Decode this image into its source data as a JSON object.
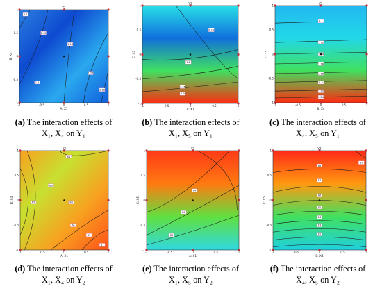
{
  "panels": [
    {
      "tag": "(a)",
      "line1": "The interaction effects of",
      "line2": "X₁, X₄ on Y₁",
      "title": "Y1",
      "xlabel": "A: X1",
      "ylabel": "B: X4",
      "xticks": [
        "-1",
        "-0.5",
        "0",
        "0.5",
        "1"
      ],
      "yticks": [
        "1",
        "0.5",
        "0",
        "-0.5",
        "-1"
      ],
      "contour_labels": [
        "1.1",
        "1.12",
        "1.14",
        "1.16",
        "1.18",
        "1.2"
      ],
      "gradient": [
        "#2a7fe0",
        "#0e4ad0",
        "#2aa8ef",
        "#1060dc"
      ]
    },
    {
      "tag": "(b)",
      "line1": "The interaction effects of",
      "line2": "X₁, X₅ on Y₁",
      "title": "Y1",
      "xlabel": "A: X1",
      "ylabel": "C: X5",
      "xticks": [
        "-1",
        "-0.5",
        "0",
        "0.5",
        "1"
      ],
      "yticks": [
        "1",
        "0.5",
        "0",
        "-0.5",
        "-1"
      ],
      "contour_labels": [
        "1.15",
        "1.2",
        "1.25",
        "1.3"
      ],
      "gradient": [
        "#29e0e8",
        "#1070dc",
        "#40e060",
        "#ff2a10"
      ]
    },
    {
      "tag": "(c)",
      "line1": "The interaction effects of",
      "line2": "X₄, X₅ on Y₁",
      "title": "Y1",
      "xlabel": "B: X4",
      "ylabel": "C: X5",
      "xticks": [
        "-1",
        "-0.5",
        "0",
        "0.5",
        "1"
      ],
      "yticks": [
        "1",
        "0.5",
        "0",
        "-0.5",
        "-1"
      ],
      "contour_labels": [
        "1.1",
        "1.12",
        "1.14",
        "1.16",
        "1.18",
        "1.2",
        "1.22",
        "1.24"
      ],
      "gradient": [
        "#22b8f0",
        "#22d8e8",
        "#40e060",
        "#ff2a10"
      ]
    },
    {
      "tag": "(d)",
      "line1": "The interaction effects of",
      "line2": "X₁, X₄ on Y₂",
      "title": "Y2",
      "xlabel": "A: X1",
      "ylabel": "B: X4",
      "xticks": [
        "-1",
        "-0.5",
        "0",
        "0.5",
        "1"
      ],
      "yticks": [
        "1",
        "0.5",
        "0",
        "-0.5",
        "-1"
      ],
      "contour_labels": [
        "84",
        "85",
        "86",
        "86",
        "86",
        "87",
        "87"
      ],
      "gradient": [
        "#f8a020",
        "#c8e030",
        "#f8a020",
        "#ff5018"
      ]
    },
    {
      "tag": "(e)",
      "line1": "The interaction effects of",
      "line2": "X₁, X₅ on Y₂",
      "title": "Y2",
      "xlabel": "A: X1",
      "ylabel": "C: X5",
      "xticks": [
        "-1",
        "-0.5",
        "0",
        "0.5",
        "1"
      ],
      "yticks": [
        "1",
        "0.5",
        "0",
        "-0.5",
        "-1"
      ],
      "contour_labels": [
        "84",
        "86",
        "88"
      ],
      "gradient": [
        "#ff3a18",
        "#ff7a10",
        "#60e040",
        "#30d8e0"
      ]
    },
    {
      "tag": "(f)",
      "line1": "The interaction effects of",
      "line2": "X₄, X₅ on Y₂",
      "title": "Y2",
      "xlabel": "B: X4",
      "ylabel": "C: X5",
      "xticks": [
        "-1",
        "-0.5",
        "0",
        "0.5",
        "1"
      ],
      "yticks": [
        "1",
        "0.5",
        "0",
        "-0.5",
        "-1"
      ],
      "contour_labels": [
        "89",
        "88",
        "87",
        "86",
        "85",
        "84",
        "83",
        "82"
      ],
      "gradient": [
        "#ff2a18",
        "#ff9a10",
        "#40e060",
        "#20d0e0"
      ]
    }
  ],
  "colors": {
    "contour": "#1a1a1a",
    "point": "#c0303a",
    "label_box": "#ffffff",
    "label_border": "#d060a0"
  },
  "chart_data": [
    {
      "type": "heatmap",
      "title": "Y1",
      "xlabel": "A: X1",
      "ylabel": "B: X4",
      "xlim": [
        -1,
        1
      ],
      "ylim": [
        -1,
        1
      ],
      "contour_levels": [
        1.1,
        1.12,
        1.14,
        1.16,
        1.18,
        1.2
      ]
    },
    {
      "type": "heatmap",
      "title": "Y1",
      "xlabel": "A: X1",
      "ylabel": "C: X5",
      "xlim": [
        -1,
        1
      ],
      "ylim": [
        -1,
        1
      ],
      "contour_levels": [
        1.15,
        1.2,
        1.25,
        1.3
      ]
    },
    {
      "type": "heatmap",
      "title": "Y1",
      "xlabel": "B: X4",
      "ylabel": "C: X5",
      "xlim": [
        -1,
        1
      ],
      "ylim": [
        -1,
        1
      ],
      "contour_levels": [
        1.1,
        1.12,
        1.14,
        1.16,
        1.18,
        1.2,
        1.22,
        1.24
      ]
    },
    {
      "type": "heatmap",
      "title": "Y2",
      "xlabel": "A: X1",
      "ylabel": "B: X4",
      "xlim": [
        -1,
        1
      ],
      "ylim": [
        -1,
        1
      ],
      "contour_levels": [
        84,
        85,
        86,
        87
      ]
    },
    {
      "type": "heatmap",
      "title": "Y2",
      "xlabel": "A: X1",
      "ylabel": "C: X5",
      "xlim": [
        -1,
        1
      ],
      "ylim": [
        -1,
        1
      ],
      "contour_levels": [
        84,
        86,
        88
      ]
    },
    {
      "type": "heatmap",
      "title": "Y2",
      "xlabel": "B: X4",
      "ylabel": "C: X5",
      "xlim": [
        -1,
        1
      ],
      "ylim": [
        -1,
        1
      ],
      "contour_levels": [
        82,
        83,
        84,
        85,
        86,
        87,
        88,
        89
      ]
    }
  ]
}
